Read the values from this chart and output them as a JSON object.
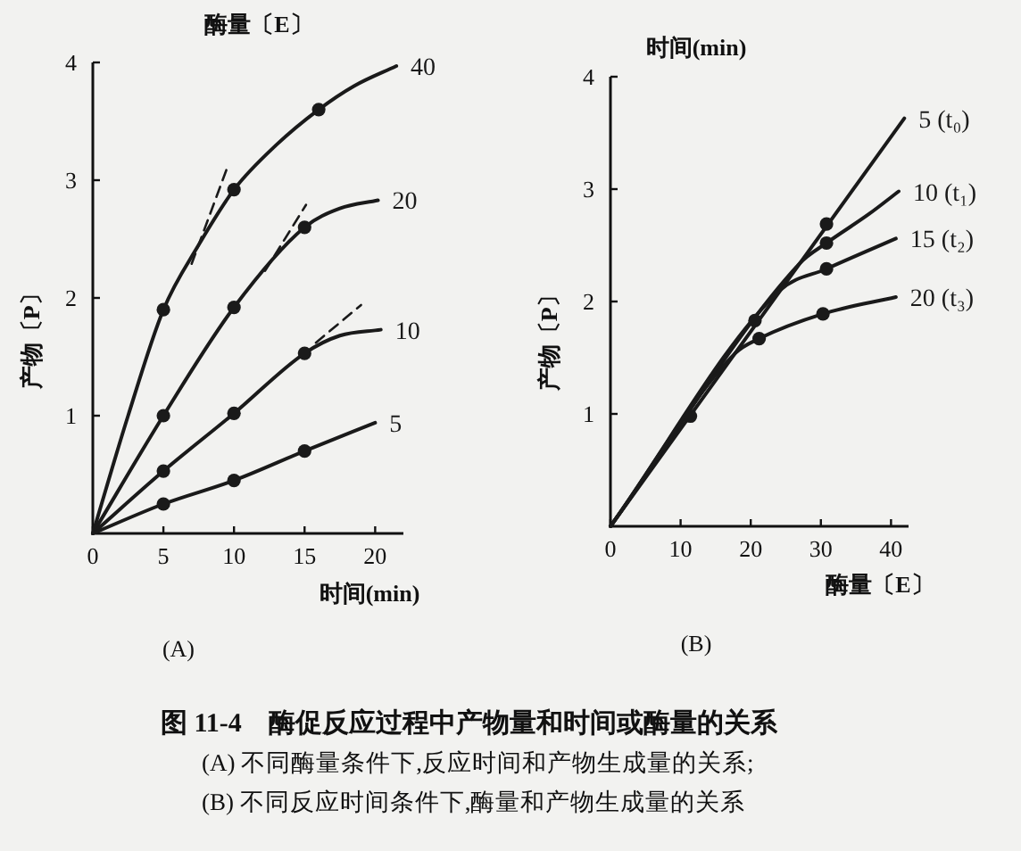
{
  "chart_data": [
    {
      "type": "line",
      "title": "(A)",
      "xlabel": "时间(min)",
      "ylabel": "产物〔P〕",
      "legend_title": "酶量〔E〕",
      "xlim": [
        0,
        22
      ],
      "ylim": [
        0,
        4
      ],
      "xticks": [
        0,
        5,
        10,
        15,
        20
      ],
      "yticks": [
        1,
        2,
        3,
        4
      ],
      "annotations": [
        "图 11-4　酶促反应过程中产物量和时间或酶量的关系",
        "(A) 不同酶量条件下,反应时间和产物生成量的关系;",
        "(B) 不同反应时间条件下,酶量和产物生成量的关系"
      ],
      "series": [
        {
          "name": "40",
          "type": "line",
          "color": "#1a1a1a",
          "x": [
            0,
            2.5,
            5,
            7.5,
            10,
            13,
            16,
            18.5,
            21.5
          ],
          "values": [
            0,
            1.0,
            1.9,
            2.45,
            2.92,
            3.3,
            3.6,
            3.8,
            3.97
          ]
        },
        {
          "name": "20",
          "type": "line",
          "color": "#1a1a1a",
          "x": [
            0,
            5,
            10,
            15,
            17.5,
            20.2
          ],
          "values": [
            0,
            1.0,
            1.92,
            2.6,
            2.76,
            2.83
          ]
        },
        {
          "name": "10",
          "type": "line",
          "color": "#1a1a1a",
          "x": [
            0,
            5,
            10,
            15,
            17.5,
            20.4
          ],
          "values": [
            0,
            0.53,
            1.02,
            1.53,
            1.68,
            1.73
          ]
        },
        {
          "name": "5",
          "type": "line",
          "color": "#1a1a1a",
          "x": [
            0,
            5,
            10,
            15,
            20
          ],
          "values": [
            0,
            0.25,
            0.45,
            0.7,
            0.94
          ]
        },
        {
          "type": "line",
          "line_style": "dashed",
          "color": "#1a1a1a",
          "x": [
            7,
            9.5
          ],
          "values": [
            2.29,
            3.1
          ]
        },
        {
          "type": "line",
          "line_style": "dashed",
          "color": "#1a1a1a",
          "x": [
            12.2,
            15.1
          ],
          "values": [
            2.23,
            2.79
          ]
        },
        {
          "type": "line",
          "line_style": "dashed",
          "color": "#1a1a1a",
          "x": [
            15.8,
            19
          ],
          "values": [
            1.62,
            1.94
          ]
        },
        {
          "type": "scatter",
          "marker": "circle",
          "color": "#1a1a1a",
          "x": [
            5,
            10,
            16,
            5,
            10,
            15,
            5,
            10,
            15,
            5,
            10,
            15
          ],
          "values": [
            1.9,
            2.92,
            3.6,
            1.0,
            1.92,
            2.6,
            0.53,
            1.02,
            1.53,
            0.25,
            0.45,
            0.7
          ]
        }
      ]
    },
    {
      "type": "line",
      "title": "(B)",
      "xlabel": "酶量〔E〕",
      "ylabel": "产物〔P〕",
      "legend_title": "时间(min)",
      "xlim": [
        0,
        42.5
      ],
      "ylim": [
        0,
        4
      ],
      "xticks": [
        0,
        10,
        20,
        30,
        40
      ],
      "yticks": [
        1,
        2,
        3,
        4
      ],
      "series": [
        {
          "name": "5 (t₀)",
          "type": "line",
          "color": "#1a1a1a",
          "x": [
            0,
            41.9
          ],
          "values": [
            0,
            3.63
          ]
        },
        {
          "name": "10 (t₁)",
          "type": "line",
          "color": "#1a1a1a",
          "x": [
            0,
            27,
            30.8,
            36.9,
            41.1
          ],
          "values": [
            0,
            2.34,
            2.52,
            2.78,
            2.98
          ]
        },
        {
          "name": "15 (t₂)",
          "type": "line",
          "color": "#1a1a1a",
          "x": [
            0,
            24.2,
            30.8,
            40.7
          ],
          "values": [
            0,
            2.1,
            2.29,
            2.56
          ]
        },
        {
          "name": "20 (t₃)",
          "type": "line",
          "color": "#1a1a1a",
          "x": [
            0,
            17.8,
            21.2,
            30.3,
            40.7
          ],
          "values": [
            0,
            1.54,
            1.67,
            1.89,
            2.04
          ]
        },
        {
          "type": "scatter",
          "marker": "circle",
          "color": "#1a1a1a",
          "x": [
            11.4,
            20.6,
            30.8,
            30.8,
            30.8,
            21.2,
            30.3
          ],
          "values": [
            0.98,
            1.83,
            2.69,
            2.52,
            2.29,
            1.67,
            1.89
          ]
        }
      ]
    }
  ]
}
